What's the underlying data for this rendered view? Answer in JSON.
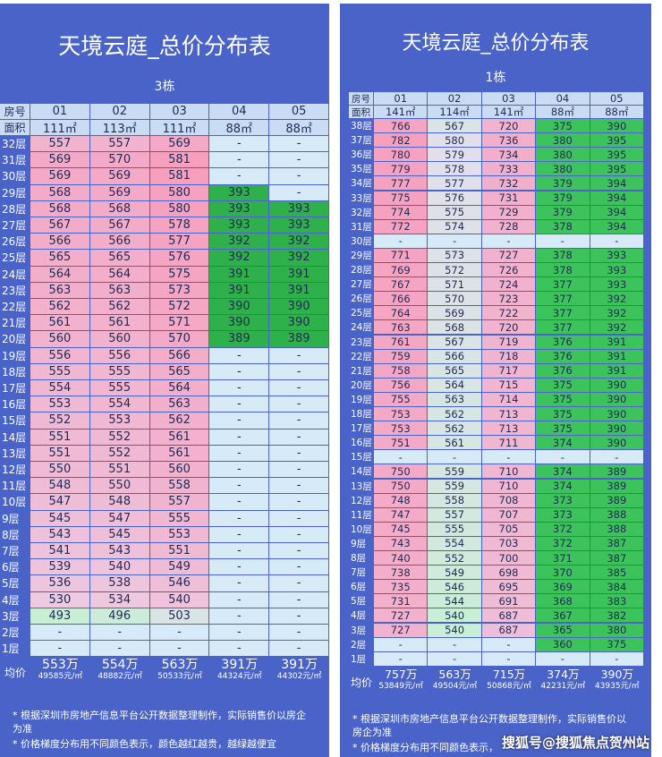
{
  "panels": [
    {
      "title": "天境云庭_总价分布表",
      "building": "3栋",
      "header": {
        "room_label": "房号",
        "rooms": [
          "01",
          "02",
          "03",
          "04",
          "05"
        ],
        "area_label": "面积",
        "areas": [
          "111㎡",
          "113㎡",
          "111㎡",
          "88㎡",
          "88㎡"
        ]
      },
      "rows": [
        {
          "floor": "32层",
          "cells": [
            557,
            557,
            569,
            "-",
            "-"
          ]
        },
        {
          "floor": "31层",
          "cells": [
            569,
            570,
            581,
            "-",
            "-"
          ]
        },
        {
          "floor": "30层",
          "cells": [
            569,
            569,
            581,
            "-",
            "-"
          ]
        },
        {
          "floor": "29层",
          "cells": [
            568,
            569,
            580,
            393,
            "-"
          ]
        },
        {
          "floor": "28层",
          "cells": [
            568,
            568,
            580,
            393,
            393
          ]
        },
        {
          "floor": "27层",
          "cells": [
            567,
            567,
            578,
            393,
            393
          ]
        },
        {
          "floor": "26层",
          "cells": [
            566,
            566,
            577,
            392,
            392
          ]
        },
        {
          "floor": "25层",
          "cells": [
            565,
            565,
            576,
            392,
            392
          ]
        },
        {
          "floor": "24层",
          "cells": [
            564,
            564,
            575,
            391,
            391
          ]
        },
        {
          "floor": "23层",
          "cells": [
            563,
            563,
            573,
            391,
            391
          ]
        },
        {
          "floor": "22层",
          "cells": [
            562,
            562,
            572,
            390,
            390
          ]
        },
        {
          "floor": "21层",
          "cells": [
            561,
            561,
            571,
            390,
            390
          ]
        },
        {
          "floor": "20层",
          "cells": [
            560,
            560,
            570,
            389,
            389
          ]
        },
        {
          "floor": "19层",
          "cells": [
            556,
            556,
            566,
            "-",
            "-"
          ]
        },
        {
          "floor": "18层",
          "cells": [
            555,
            555,
            565,
            "-",
            "-"
          ]
        },
        {
          "floor": "17层",
          "cells": [
            554,
            555,
            564,
            "-",
            "-"
          ]
        },
        {
          "floor": "16层",
          "cells": [
            553,
            554,
            563,
            "-",
            "-"
          ]
        },
        {
          "floor": "15层",
          "cells": [
            552,
            553,
            562,
            "-",
            "-"
          ]
        },
        {
          "floor": "14层",
          "cells": [
            551,
            552,
            561,
            "-",
            "-"
          ]
        },
        {
          "floor": "13层",
          "cells": [
            551,
            552,
            561,
            "-",
            "-"
          ]
        },
        {
          "floor": "12层",
          "cells": [
            550,
            551,
            560,
            "-",
            "-"
          ]
        },
        {
          "floor": "11层",
          "cells": [
            548,
            550,
            558,
            "-",
            "-"
          ]
        },
        {
          "floor": "10层",
          "cells": [
            547,
            548,
            557,
            "-",
            "-"
          ]
        },
        {
          "floor": "9层",
          "cells": [
            545,
            547,
            555,
            "-",
            "-"
          ]
        },
        {
          "floor": "8层",
          "cells": [
            543,
            545,
            553,
            "-",
            "-"
          ]
        },
        {
          "floor": "7层",
          "cells": [
            541,
            543,
            551,
            "-",
            "-"
          ]
        },
        {
          "floor": "6层",
          "cells": [
            539,
            540,
            549,
            "-",
            "-"
          ]
        },
        {
          "floor": "5层",
          "cells": [
            536,
            538,
            546,
            "-",
            "-"
          ]
        },
        {
          "floor": "4层",
          "cells": [
            530,
            534,
            540,
            "-",
            "-"
          ]
        },
        {
          "floor": "3层",
          "cells": [
            493,
            496,
            503,
            "-",
            "-"
          ]
        },
        {
          "floor": "2层",
          "cells": [
            "-",
            "-",
            "-",
            "-",
            "-"
          ]
        },
        {
          "floor": "1层",
          "cells": [
            "-",
            "-",
            "-",
            "-",
            "-"
          ]
        }
      ],
      "average": {
        "label": "均价",
        "totals": [
          "553万",
          "554万",
          "563万",
          "391万",
          "391万"
        ],
        "unit_prices": [
          "49585元/㎡",
          "48882元/㎡",
          "50533元/㎡",
          "44324元/㎡",
          "44302元/㎡"
        ]
      },
      "notes": [
        "* 根据深圳市房地产信息平台公开数据整理制作，实际销售价以房企为准",
        "* 价格梯度分布用不同颜色表示，颜色越红越贵，越绿越便宜"
      ]
    },
    {
      "title": "天境云庭_总价分布表",
      "building": "1栋",
      "header": {
        "room_label": "房号",
        "rooms": [
          "01",
          "02",
          "03",
          "04",
          "05"
        ],
        "area_label": "面积",
        "areas": [
          "141㎡",
          "114㎡",
          "141㎡",
          "88㎡",
          "88㎡"
        ]
      },
      "rows": [
        {
          "floor": "38层",
          "cells": [
            766,
            567,
            720,
            375,
            390
          ]
        },
        {
          "floor": "37层",
          "cells": [
            782,
            580,
            736,
            380,
            395
          ]
        },
        {
          "floor": "36层",
          "cells": [
            780,
            579,
            734,
            380,
            395
          ]
        },
        {
          "floor": "35层",
          "cells": [
            779,
            578,
            733,
            380,
            395
          ]
        },
        {
          "floor": "34层",
          "cells": [
            777,
            577,
            732,
            379,
            394
          ]
        },
        {
          "floor": "33层",
          "cells": [
            775,
            576,
            731,
            379,
            394
          ]
        },
        {
          "floor": "32层",
          "cells": [
            774,
            575,
            729,
            379,
            394
          ]
        },
        {
          "floor": "31层",
          "cells": [
            772,
            574,
            728,
            378,
            394
          ]
        },
        {
          "floor": "30层",
          "cells": [
            "-",
            "-",
            "-",
            "-",
            "-"
          ]
        },
        {
          "floor": "29层",
          "cells": [
            771,
            573,
            727,
            378,
            393
          ]
        },
        {
          "floor": "28层",
          "cells": [
            769,
            572,
            726,
            378,
            393
          ]
        },
        {
          "floor": "27层",
          "cells": [
            767,
            571,
            724,
            377,
            393
          ]
        },
        {
          "floor": "26层",
          "cells": [
            766,
            570,
            723,
            377,
            392
          ]
        },
        {
          "floor": "25层",
          "cells": [
            764,
            569,
            722,
            377,
            392
          ]
        },
        {
          "floor": "24层",
          "cells": [
            763,
            568,
            720,
            377,
            392
          ]
        },
        {
          "floor": "23层",
          "cells": [
            761,
            567,
            719,
            376,
            391
          ]
        },
        {
          "floor": "22层",
          "cells": [
            759,
            566,
            718,
            376,
            391
          ]
        },
        {
          "floor": "21层",
          "cells": [
            758,
            565,
            717,
            376,
            391
          ]
        },
        {
          "floor": "20层",
          "cells": [
            756,
            564,
            715,
            375,
            390
          ]
        },
        {
          "floor": "19层",
          "cells": [
            755,
            563,
            714,
            375,
            390
          ]
        },
        {
          "floor": "18层",
          "cells": [
            753,
            562,
            713,
            375,
            390
          ]
        },
        {
          "floor": "17层",
          "cells": [
            753,
            562,
            713,
            375,
            390
          ]
        },
        {
          "floor": "16层",
          "cells": [
            751,
            561,
            711,
            374,
            390
          ]
        },
        {
          "floor": "15层",
          "cells": [
            "-",
            "-",
            "-",
            "-",
            "-"
          ]
        },
        {
          "floor": "14层",
          "cells": [
            750,
            559,
            710,
            374,
            389
          ]
        },
        {
          "floor": "13层",
          "cells": [
            750,
            559,
            710,
            374,
            389
          ]
        },
        {
          "floor": "12层",
          "cells": [
            748,
            558,
            708,
            373,
            389
          ]
        },
        {
          "floor": "11层",
          "cells": [
            747,
            557,
            707,
            373,
            388
          ]
        },
        {
          "floor": "10层",
          "cells": [
            745,
            555,
            705,
            372,
            388
          ]
        },
        {
          "floor": "9层",
          "cells": [
            743,
            554,
            703,
            372,
            387
          ]
        },
        {
          "floor": "8层",
          "cells": [
            740,
            552,
            700,
            371,
            387
          ]
        },
        {
          "floor": "7层",
          "cells": [
            738,
            549,
            698,
            370,
            385
          ]
        },
        {
          "floor": "6层",
          "cells": [
            735,
            546,
            695,
            369,
            384
          ]
        },
        {
          "floor": "5层",
          "cells": [
            731,
            544,
            691,
            368,
            383
          ]
        },
        {
          "floor": "4层",
          "cells": [
            727,
            540,
            687,
            367,
            382
          ]
        },
        {
          "floor": "3层",
          "cells": [
            727,
            540,
            687,
            365,
            380
          ]
        },
        {
          "floor": "2层",
          "cells": [
            "-",
            "-",
            "-",
            360,
            375
          ]
        },
        {
          "floor": "1层",
          "cells": [
            "-",
            "-",
            "-",
            "-",
            "-"
          ]
        }
      ],
      "average": {
        "label": "均价",
        "totals": [
          "757万",
          "563万",
          "715万",
          "374万",
          "390万"
        ],
        "unit_prices": [
          "53849元/㎡",
          "49504元/㎡",
          "50868元/㎡",
          "42231元/㎡",
          "43935元/㎡"
        ]
      },
      "notes": [
        "* 根据深圳市房地产信息平台公开数据整理制作，实际销售价以房企为准",
        "* 价格梯度分布用不同颜色表示，"
      ]
    }
  ],
  "watermark": "搜狐号@搜狐焦点贺州站"
}
